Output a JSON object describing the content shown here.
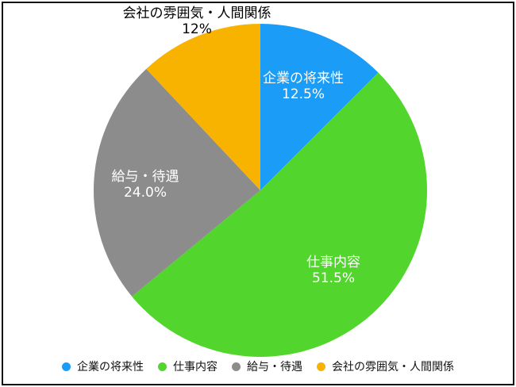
{
  "chart_data": {
    "type": "pie",
    "categories": [
      "企業の将来性",
      "仕事内容",
      "給与・待遇",
      "会社の雰囲気・人間関係"
    ],
    "values": [
      12.5,
      51.5,
      24.0,
      12
    ],
    "value_labels": [
      "12.5%",
      "51.5%",
      "24.0%",
      "12%"
    ],
    "colors": [
      "#1a9cf7",
      "#52d52c",
      "#8c8c8c",
      "#f8b200"
    ],
    "start_angle_deg": -90,
    "direction": "clockwise",
    "legend_position": "bottom"
  }
}
